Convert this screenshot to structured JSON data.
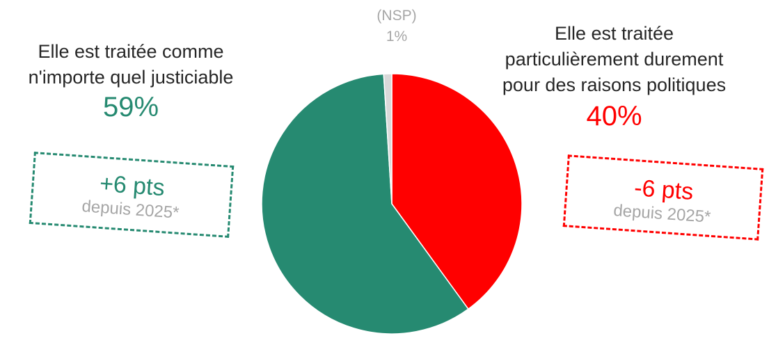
{
  "chart_data": {
    "type": "pie",
    "slices": [
      {
        "label": "Elle est traitée particulièrement durement pour des raisons politiques",
        "value": 40,
        "value_label": "40%",
        "color": "#ff0000"
      },
      {
        "label": "Elle est traitée comme n'importe quel justiciable",
        "value": 59,
        "value_label": "59%",
        "color": "#268a71"
      },
      {
        "label": "(NSP)",
        "value": 1,
        "value_label": "1%",
        "color": "#d9d9d9"
      }
    ]
  },
  "labels": {
    "left": {
      "line1": "Elle est traitée comme",
      "line2": "n'importe quel justiciable",
      "pct": "59%",
      "color": "#268a71"
    },
    "right": {
      "line1": "Elle est traitée",
      "line2": "particulièrement durement",
      "line3": "pour des raisons politiques",
      "pct": "40%",
      "color": "#ff0000"
    },
    "nsp": {
      "label": "(NSP)",
      "pct": "1%"
    }
  },
  "changes": {
    "left": {
      "delta": "+6 pts",
      "since": "depuis 2025*",
      "color": "#268a71"
    },
    "right": {
      "delta": "-6 pts",
      "since": "depuis 2025*",
      "color": "#ff0000"
    }
  }
}
